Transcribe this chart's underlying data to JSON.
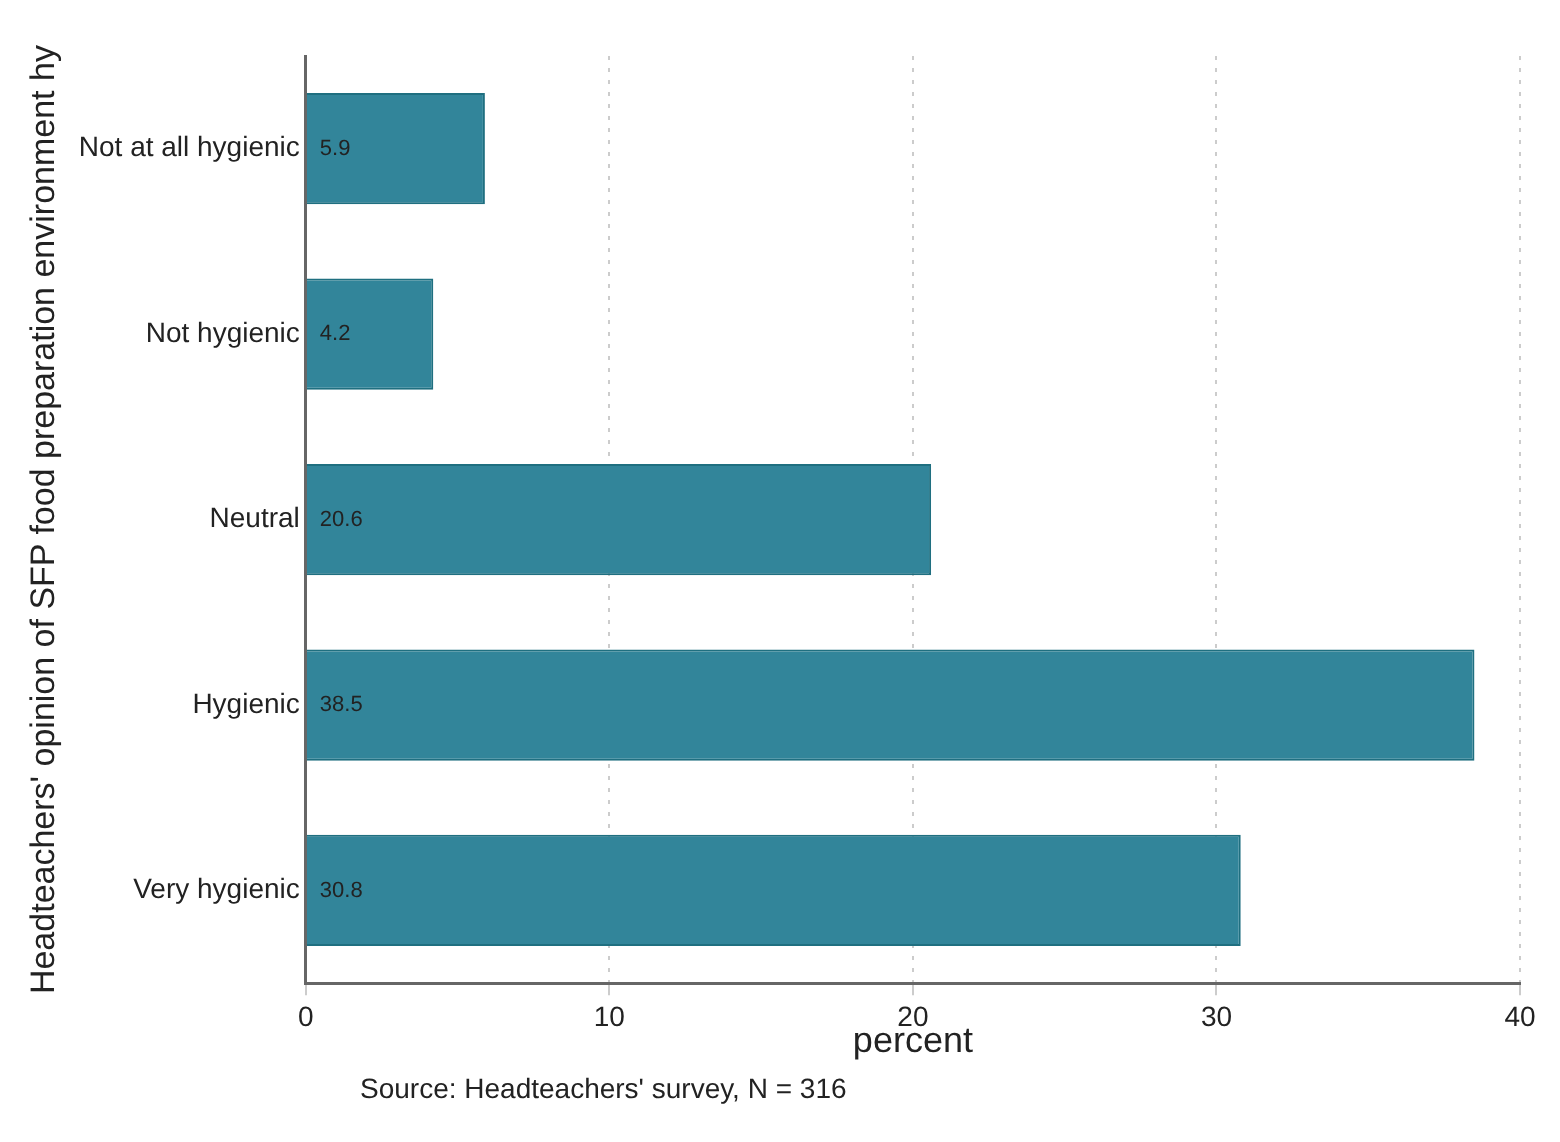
{
  "chart_data": {
    "type": "bar",
    "orientation": "horizontal",
    "ylabel": "Headteachers' opinion of SFP food preparation environment hy",
    "xlabel": "percent",
    "categories": [
      "Not at all hygienic",
      "Not hygienic",
      "Neutral",
      "Hygienic",
      "Very hygienic"
    ],
    "values": [
      5.9,
      4.2,
      20.6,
      38.5,
      30.8
    ],
    "color": "#32859a",
    "xlim": [
      0,
      40
    ],
    "xticks": [
      0,
      10,
      20,
      30,
      40
    ],
    "grid": "x",
    "data_labels": true,
    "annotations": [
      "Source: Headteachers' survey, N = 316"
    ]
  }
}
